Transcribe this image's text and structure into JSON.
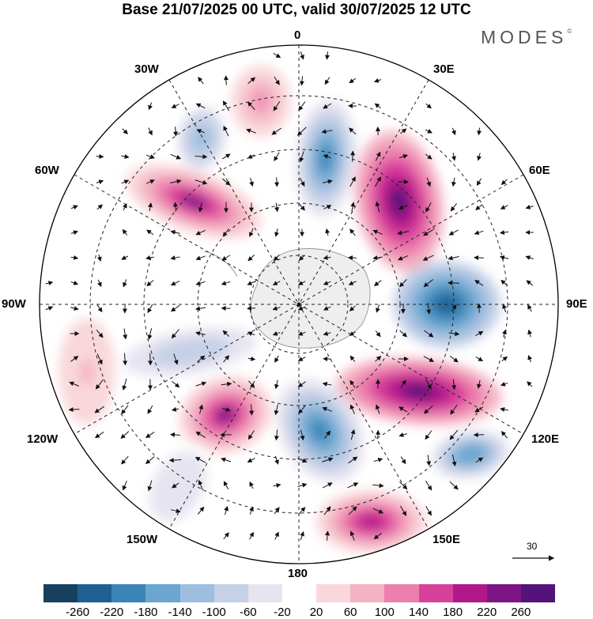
{
  "header": {
    "title": "Base 21/07/2025 00 UTC, valid 30/07/2025 12 UTC",
    "brand": "MODES",
    "brand_mark": "©"
  },
  "map": {
    "projection": "south-polar-stereographic",
    "longitude_labels": {
      "top": "0",
      "top_right": "30E",
      "upper_right": "60E",
      "right": "90E",
      "lower_right": "120E",
      "bottom_right": "150E",
      "bottom": "180",
      "bottom_left": "150W",
      "lower_left": "120W",
      "left": "90W",
      "upper_left": "60W",
      "top_left": "30W"
    },
    "reference_vector_label": "30",
    "anomaly_centers": [
      {
        "name": "positive-anomaly-30e-60e",
        "sign": "positive",
        "peak": 260
      },
      {
        "name": "negative-anomaly-90e",
        "sign": "negative",
        "peak": -260
      },
      {
        "name": "positive-anomaly-110e",
        "sign": "positive",
        "peak": 260
      },
      {
        "name": "negative-anomaly-170e",
        "sign": "negative",
        "peak": -220
      },
      {
        "name": "positive-anomaly-150e",
        "sign": "positive",
        "peak": 180
      },
      {
        "name": "negative-anomaly-120e",
        "sign": "negative",
        "peak": -180
      },
      {
        "name": "positive-anomaly-140w",
        "sign": "positive",
        "peak": 220
      },
      {
        "name": "positive-anomaly-60w",
        "sign": "positive",
        "peak": 220
      },
      {
        "name": "negative-anomaly-0",
        "sign": "negative",
        "peak": -220
      },
      {
        "name": "negative-anomaly-45w",
        "sign": "negative",
        "peak": -140
      },
      {
        "name": "positive-anomaly-20w",
        "sign": "positive",
        "peak": 100
      },
      {
        "name": "negative-anomaly-105w",
        "sign": "negative",
        "peak": -100
      },
      {
        "name": "negative-anomaly-135w",
        "sign": "negative",
        "peak": -60
      },
      {
        "name": "positive-anomaly-95w",
        "sign": "positive",
        "peak": 60
      }
    ]
  },
  "colorbar": {
    "ticks": [
      "-260",
      "-220",
      "-180",
      "-140",
      "-100",
      "-60",
      "-20",
      "20",
      "60",
      "100",
      "140",
      "180",
      "220",
      "260"
    ],
    "colors": [
      "#17405e",
      "#1f6091",
      "#3a84b8",
      "#6aa6cf",
      "#9dbedf",
      "#c6d0e6",
      "#e6e4f0",
      "#ffffff",
      "#f9d7da",
      "#f4b3c4",
      "#ec7fae",
      "#d8419a",
      "#b1188a",
      "#7d1584",
      "#53137a"
    ]
  }
}
